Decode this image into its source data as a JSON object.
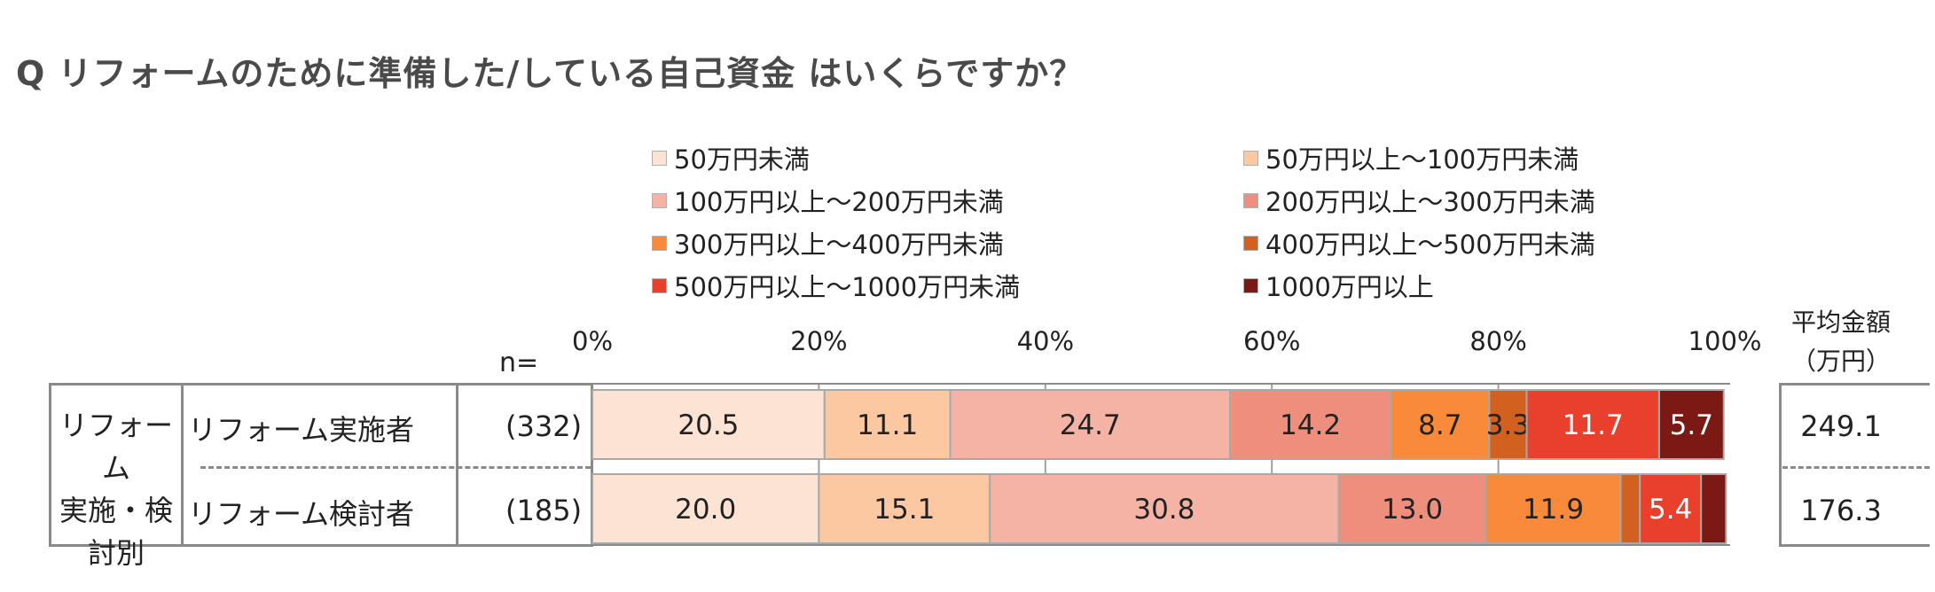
{
  "question": "Q  リフォームのために準備した/している自己資金  はいくらですか？",
  "n_label": "n=",
  "avg_header": {
    "line1": "平均金額",
    "line2": "（万円）"
  },
  "group_label": {
    "line1": "リフォーム",
    "line2": "実施・検",
    "line3": "討別"
  },
  "chart_data": {
    "type": "bar",
    "orientation": "horizontal",
    "stacked": true,
    "title": "Q  リフォームのために準備した/している自己資金  はいくらですか？",
    "xlim": [
      0,
      100
    ],
    "ticks": [
      "0%",
      "20%",
      "40%",
      "60%",
      "80%",
      "100%"
    ],
    "grid": true,
    "legend_position": "top",
    "categories": [
      "リフォーム実施者",
      "リフォーム検討者"
    ],
    "n_values": [
      "(332)",
      "(185)"
    ],
    "series": [
      {
        "name": "50万円未満",
        "color": "#fde3d3",
        "values": [
          20.5,
          20.0
        ]
      },
      {
        "name": "50万円以上～100万円未満",
        "color": "#fbc8a2",
        "values": [
          11.1,
          15.1
        ]
      },
      {
        "name": "100万円以上～200万円未満",
        "color": "#f5b3a6",
        "values": [
          24.7,
          30.8
        ]
      },
      {
        "name": "200万円以上～300万円未満",
        "color": "#ee8f7e",
        "values": [
          14.2,
          13.0
        ]
      },
      {
        "name": "300万円以上～400万円未満",
        "color": "#f88a3a",
        "values": [
          8.7,
          11.9
        ]
      },
      {
        "name": "400万円以上～500万円未満",
        "color": "#d2601f",
        "values": [
          3.3,
          1.7
        ]
      },
      {
        "name": "500万円以上～1000万円未満",
        "color": "#e8402d",
        "values": [
          11.7,
          5.4
        ]
      },
      {
        "name": "1000万円以上",
        "color": "#7b1a14",
        "values": [
          5.7,
          2.2
        ]
      }
    ],
    "data_labels": [
      [
        "20.5",
        "11.1",
        "24.7",
        "14.2",
        "8.7",
        "3.3",
        "11.7",
        "5.7"
      ],
      [
        "20.0",
        "15.1",
        "30.8",
        "13.0",
        "11.9",
        "",
        "5.4",
        ""
      ]
    ],
    "averages": [
      "249.1",
      "176.3"
    ]
  }
}
